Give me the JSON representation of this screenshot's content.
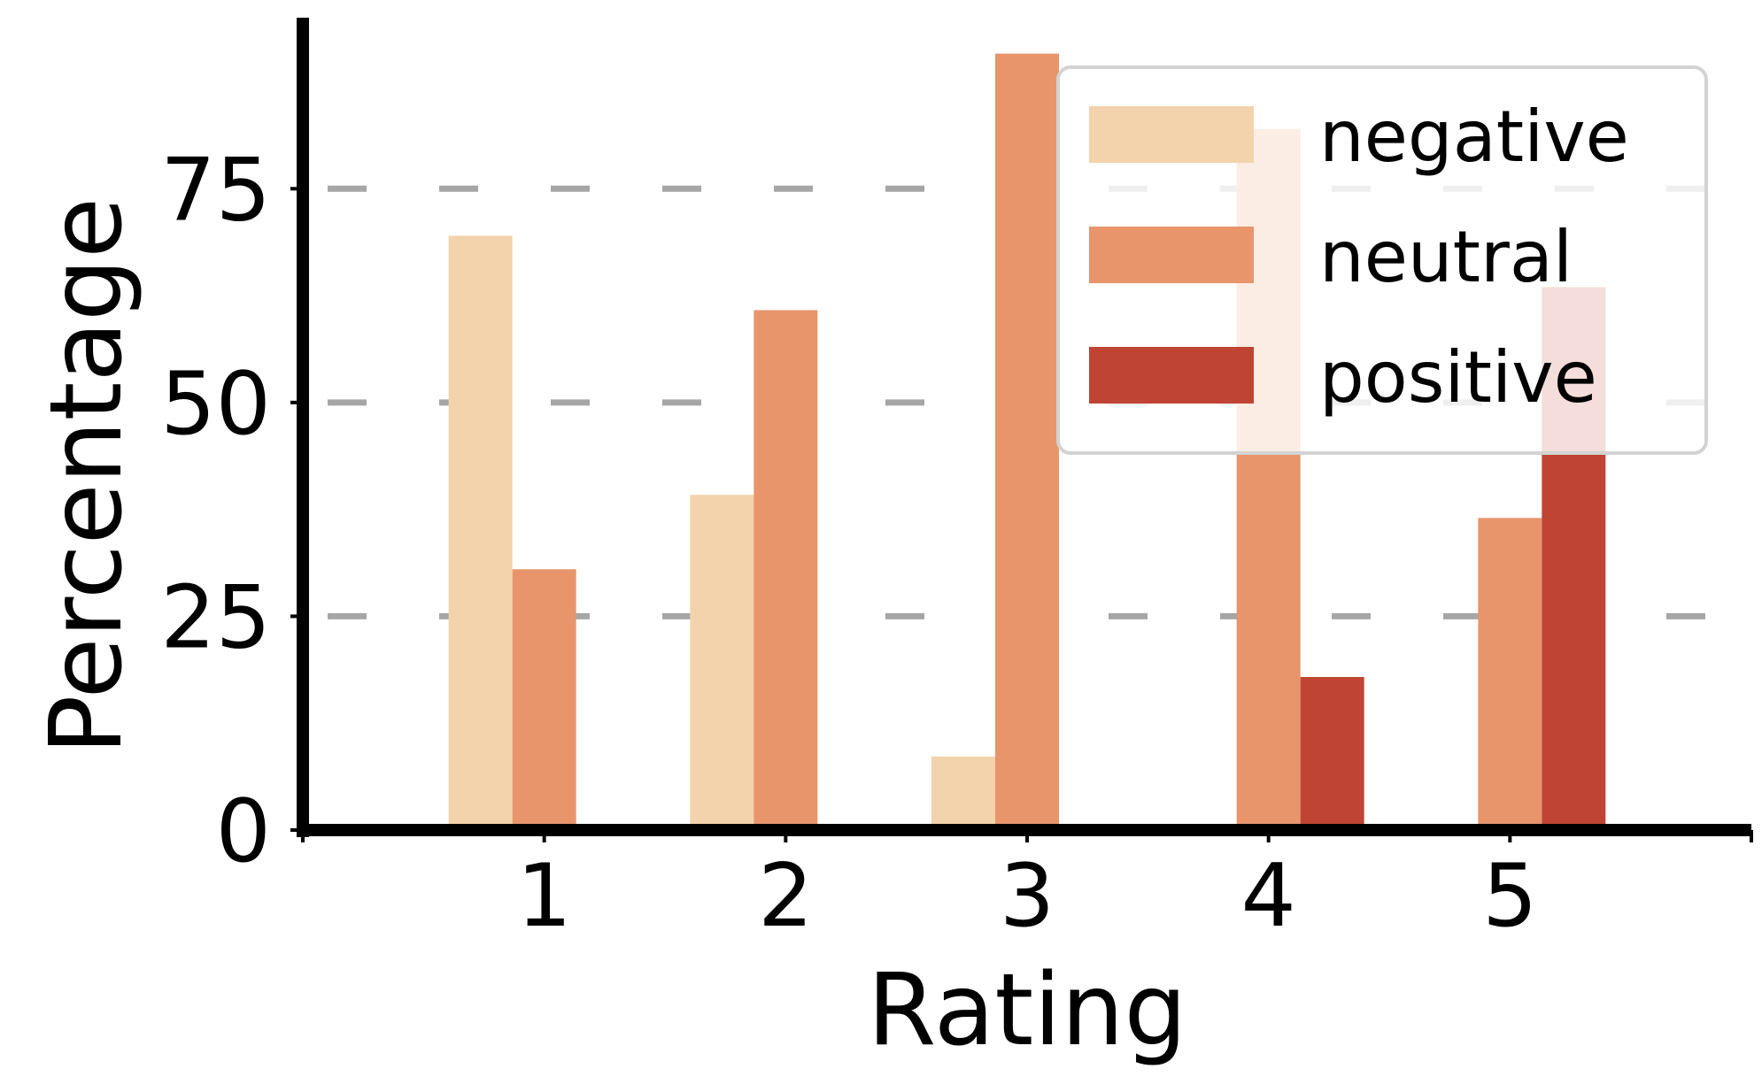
{
  "chart_data": {
    "type": "bar",
    "xlabel": "Rating",
    "ylabel": "Percentage",
    "categories": [
      "1",
      "2",
      "3",
      "4",
      "5"
    ],
    "series": [
      {
        "name": "negative",
        "color": "#f2d3ab",
        "values": [
          69.5,
          39.2,
          8.6,
          0,
          0
        ]
      },
      {
        "name": "neutral",
        "color": "#e8956c",
        "values": [
          30.5,
          60.8,
          90.8,
          82.0,
          36.5
        ]
      },
      {
        "name": "positive",
        "color": "#c04434",
        "values": [
          0,
          0,
          0.6,
          17.9,
          63.5
        ]
      }
    ],
    "ylim": [
      0,
      95
    ],
    "yticks": [
      0,
      25,
      50,
      75
    ],
    "xlim": [
      0,
      6
    ],
    "grid": "y-dashed",
    "legend_position": "top-right"
  }
}
